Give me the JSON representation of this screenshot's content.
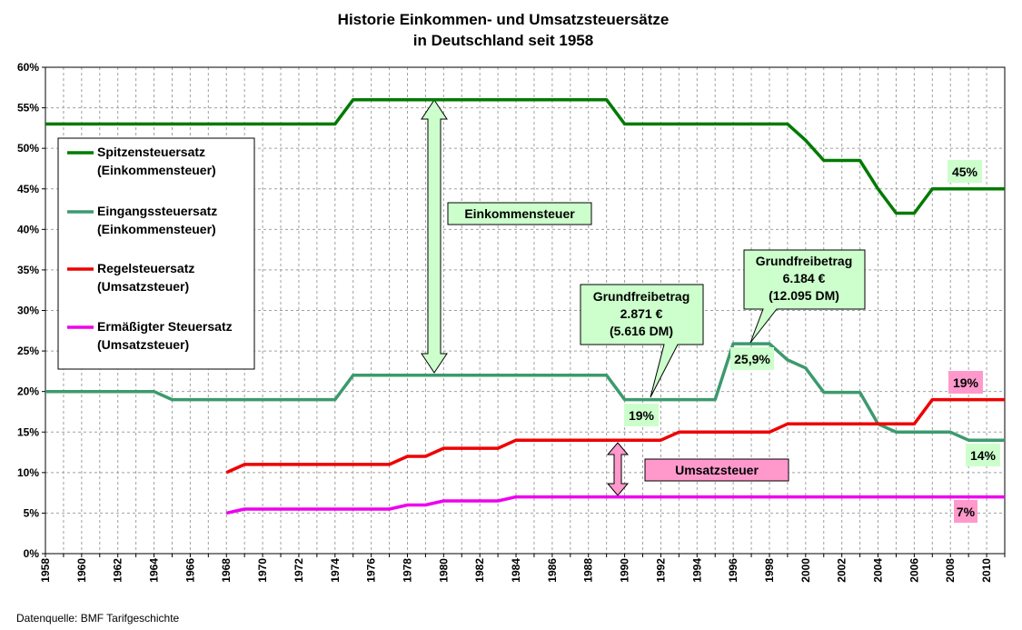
{
  "chart_data": {
    "type": "line",
    "title": [
      "Historie Einkommen- und Umsatzsteuersätze",
      "in Deutschland seit 1958"
    ],
    "source": "Datenquelle: BMF Tarifgeschichte",
    "xlim": [
      1958,
      2011
    ],
    "ylim": [
      0,
      60
    ],
    "x_ticks": [
      1958,
      1960,
      1962,
      1964,
      1966,
      1968,
      1970,
      1972,
      1974,
      1976,
      1978,
      1980,
      1982,
      1984,
      1986,
      1988,
      1990,
      1992,
      1994,
      1996,
      1998,
      2000,
      2002,
      2004,
      2006,
      2008,
      2010
    ],
    "y_ticks": [
      "0%",
      "5%",
      "10%",
      "15%",
      "20%",
      "25%",
      "30%",
      "35%",
      "40%",
      "45%",
      "50%",
      "55%",
      "60%"
    ],
    "grid": true,
    "legend_position": "left",
    "series": [
      {
        "name": "Spitzensteuersatz (Einkommensteuer)",
        "label_lines": [
          "Spitzensteuersatz",
          "(Einkommensteuer)"
        ],
        "color": "#007a00",
        "points": [
          [
            1958,
            53
          ],
          [
            1974,
            53
          ],
          [
            1975,
            56
          ],
          [
            1989,
            56
          ],
          [
            1990,
            53
          ],
          [
            1999,
            53
          ],
          [
            2000,
            51
          ],
          [
            2001,
            48.5
          ],
          [
            2003,
            48.5
          ],
          [
            2004,
            45
          ],
          [
            2005,
            42
          ],
          [
            2006,
            42
          ],
          [
            2007,
            45
          ],
          [
            2011,
            45
          ]
        ]
      },
      {
        "name": "Eingangssteuersatz (Einkommensteuer)",
        "label_lines": [
          "Eingangssteuersatz",
          "(Einkommensteuer)"
        ],
        "color": "#3c9a6e",
        "points": [
          [
            1958,
            20
          ],
          [
            1964,
            20
          ],
          [
            1965,
            19
          ],
          [
            1974,
            19
          ],
          [
            1975,
            22
          ],
          [
            1989,
            22
          ],
          [
            1990,
            19
          ],
          [
            1995,
            19
          ],
          [
            1996,
            25.9
          ],
          [
            1998,
            25.9
          ],
          [
            1999,
            23.9
          ],
          [
            2000,
            22.9
          ],
          [
            2001,
            19.9
          ],
          [
            2003,
            19.9
          ],
          [
            2004,
            16
          ],
          [
            2005,
            15
          ],
          [
            2008,
            15
          ],
          [
            2009,
            14
          ],
          [
            2011,
            14
          ]
        ]
      },
      {
        "name": "Regelsteuersatz (Umsatzsteuer)",
        "label_lines": [
          "Regelsteuersatz",
          "(Umsatzsteuer)"
        ],
        "color": "#ee0000",
        "points": [
          [
            1968,
            10
          ],
          [
            1969,
            11
          ],
          [
            1977,
            11
          ],
          [
            1978,
            12
          ],
          [
            1979,
            12
          ],
          [
            1980,
            13
          ],
          [
            1983,
            13
          ],
          [
            1984,
            14
          ],
          [
            1992,
            14
          ],
          [
            1993,
            15
          ],
          [
            1998,
            15
          ],
          [
            1999,
            16
          ],
          [
            2006,
            16
          ],
          [
            2007,
            19
          ],
          [
            2011,
            19
          ]
        ]
      },
      {
        "name": "Ermäßigter Steuersatz (Umsatzsteuer)",
        "label_lines": [
          "Ermäßigter Steuersatz",
          "(Umsatzsteuer)"
        ],
        "color": "#ee00ee",
        "points": [
          [
            1968,
            5
          ],
          [
            1969,
            5.5
          ],
          [
            1977,
            5.5
          ],
          [
            1978,
            6
          ],
          [
            1979,
            6
          ],
          [
            1980,
            6.5
          ],
          [
            1983,
            6.5
          ],
          [
            1984,
            7
          ],
          [
            2011,
            7
          ]
        ]
      }
    ],
    "annotations": {
      "einkommensteuer": "Einkommensteuer",
      "umsatzsteuer": "Umsatzsteuer",
      "grundfreibetrag_1990": [
        "Grundfreibetrag",
        "2.871 €",
        "(5.616 DM)"
      ],
      "grundfreibetrag_1996": [
        "Grundfreibetrag",
        "6.184 €",
        "(12.095 DM)"
      ],
      "label_19": "19%",
      "label_259": "25,9%",
      "label_45": "45%",
      "label_14": "14%",
      "label_19b": "19%",
      "label_7": "7%"
    },
    "colors": {
      "callout_green": "#ccffcc",
      "callout_pink": "#ff99cc",
      "grid": "#a0a0a0"
    }
  }
}
